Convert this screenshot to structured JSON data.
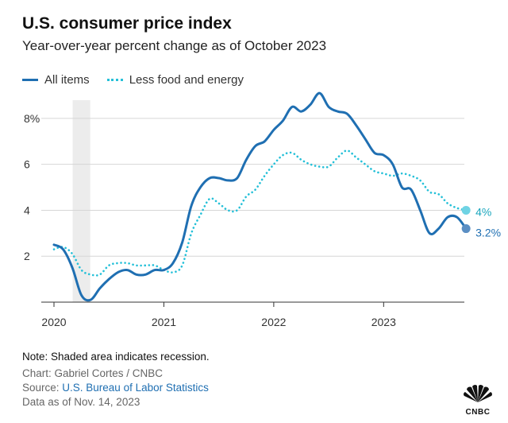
{
  "header": {
    "title": "U.S. consumer price index",
    "subtitle": "Year-over-year percent change as of October 2023"
  },
  "legend": {
    "items": [
      {
        "label": "All items",
        "color": "#1f6fb2",
        "style": "solid"
      },
      {
        "label": "Less food and energy",
        "color": "#25c0d8",
        "style": "dotted"
      }
    ]
  },
  "footer": {
    "note": "Note: Shaded area indicates recession.",
    "chart_credit": "Chart: Gabriel Cortes / CNBC",
    "source_prefix": "Source: ",
    "source_link": "U.S. Bureau of Labor Statistics",
    "data_date": "Data as of Nov. 14, 2023",
    "brand": "CNBC"
  },
  "chart_data": {
    "type": "line",
    "ylim": [
      0,
      9
    ],
    "yticks": [
      2,
      4,
      6,
      8
    ],
    "ytick_labels": [
      "2",
      "4",
      "6",
      "8%"
    ],
    "xlim": [
      2020,
      2023.85
    ],
    "xticks": [
      2020,
      2021,
      2022,
      2023
    ],
    "xtick_labels": [
      "2020",
      "2021",
      "2022",
      "2023"
    ],
    "grid": "horizontal",
    "recession": {
      "start": 2020.17,
      "end": 2020.33
    },
    "series": [
      {
        "name": "All items",
        "color": "#1f6fb2",
        "style": "solid",
        "end_label": "3.2%",
        "x": [
          2020.0,
          2020.083,
          2020.167,
          2020.25,
          2020.333,
          2020.417,
          2020.5,
          2020.583,
          2020.667,
          2020.75,
          2020.833,
          2020.917,
          2021.0,
          2021.083,
          2021.167,
          2021.25,
          2021.333,
          2021.417,
          2021.5,
          2021.583,
          2021.667,
          2021.75,
          2021.833,
          2021.917,
          2022.0,
          2022.083,
          2022.167,
          2022.25,
          2022.333,
          2022.417,
          2022.5,
          2022.583,
          2022.667,
          2022.75,
          2022.833,
          2022.917,
          2023.0,
          2023.083,
          2023.167,
          2023.25,
          2023.333,
          2023.417,
          2023.5,
          2023.583,
          2023.667,
          2023.75
        ],
        "y": [
          2.5,
          2.3,
          1.5,
          0.3,
          0.1,
          0.6,
          1.0,
          1.3,
          1.4,
          1.2,
          1.2,
          1.4,
          1.4,
          1.7,
          2.6,
          4.2,
          5.0,
          5.4,
          5.4,
          5.3,
          5.4,
          6.2,
          6.8,
          7.0,
          7.5,
          7.9,
          8.5,
          8.3,
          8.6,
          9.1,
          8.5,
          8.3,
          8.2,
          7.7,
          7.1,
          6.5,
          6.4,
          6.0,
          5.0,
          4.9,
          4.0,
          3.0,
          3.2,
          3.7,
          3.7,
          3.2
        ]
      },
      {
        "name": "Less food and energy",
        "color": "#25c0d8",
        "style": "dotted",
        "end_label": "4%",
        "x": [
          2020.0,
          2020.083,
          2020.167,
          2020.25,
          2020.333,
          2020.417,
          2020.5,
          2020.583,
          2020.667,
          2020.75,
          2020.833,
          2020.917,
          2021.0,
          2021.083,
          2021.167,
          2021.25,
          2021.333,
          2021.417,
          2021.5,
          2021.583,
          2021.667,
          2021.75,
          2021.833,
          2021.917,
          2022.0,
          2022.083,
          2022.167,
          2022.25,
          2022.333,
          2022.417,
          2022.5,
          2022.583,
          2022.667,
          2022.75,
          2022.833,
          2022.917,
          2023.0,
          2023.083,
          2023.167,
          2023.25,
          2023.333,
          2023.417,
          2023.5,
          2023.583,
          2023.667,
          2023.75
        ],
        "y": [
          2.3,
          2.4,
          2.1,
          1.4,
          1.2,
          1.2,
          1.6,
          1.7,
          1.7,
          1.6,
          1.6,
          1.6,
          1.4,
          1.3,
          1.6,
          3.0,
          3.8,
          4.5,
          4.3,
          4.0,
          4.0,
          4.6,
          4.9,
          5.5,
          6.0,
          6.4,
          6.5,
          6.2,
          6.0,
          5.9,
          5.9,
          6.3,
          6.6,
          6.3,
          6.0,
          5.7,
          5.6,
          5.5,
          5.6,
          5.5,
          5.3,
          4.8,
          4.7,
          4.3,
          4.1,
          4.0
        ]
      }
    ]
  }
}
